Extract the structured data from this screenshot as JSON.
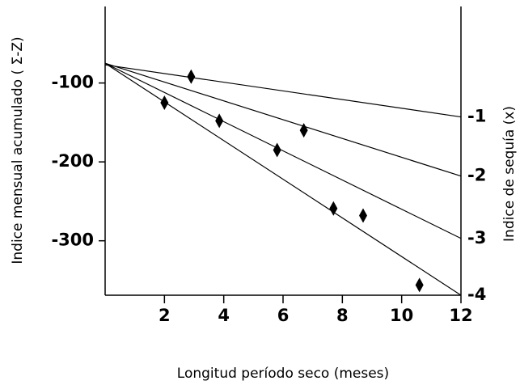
{
  "chart_data": {
    "type": "scatter",
    "xlabel": "Longitud período seco (meses)",
    "ylabel": "Indice mensual acumulado ( Σ-Z)",
    "y2label": "Indice de sequía (x)",
    "x": [
      2.0,
      2.9,
      3.85,
      5.8,
      6.7,
      7.7,
      8.7,
      10.6
    ],
    "values": [
      -125,
      -92,
      -148,
      -185,
      -160,
      -259,
      -268,
      -356
    ],
    "color": "#000000",
    "lines": [
      {
        "label": "-1",
        "x": [
          0,
          12
        ],
        "values": [
          -77,
          -143
        ]
      },
      {
        "label": "-2",
        "x": [
          0,
          12
        ],
        "values": [
          -75,
          -218
        ]
      },
      {
        "label": "-3",
        "x": [
          0,
          12
        ],
        "values": [
          -75,
          -297
        ]
      },
      {
        "label": "-4",
        "x": [
          0,
          12
        ],
        "values": [
          -75,
          -369
        ]
      }
    ],
    "xlim": [
      0,
      12
    ],
    "xticks": [
      2,
      4,
      6,
      8,
      10,
      12
    ],
    "ylim": [
      -369,
      -3
    ],
    "yticks": [
      -100,
      -200,
      -300
    ]
  }
}
